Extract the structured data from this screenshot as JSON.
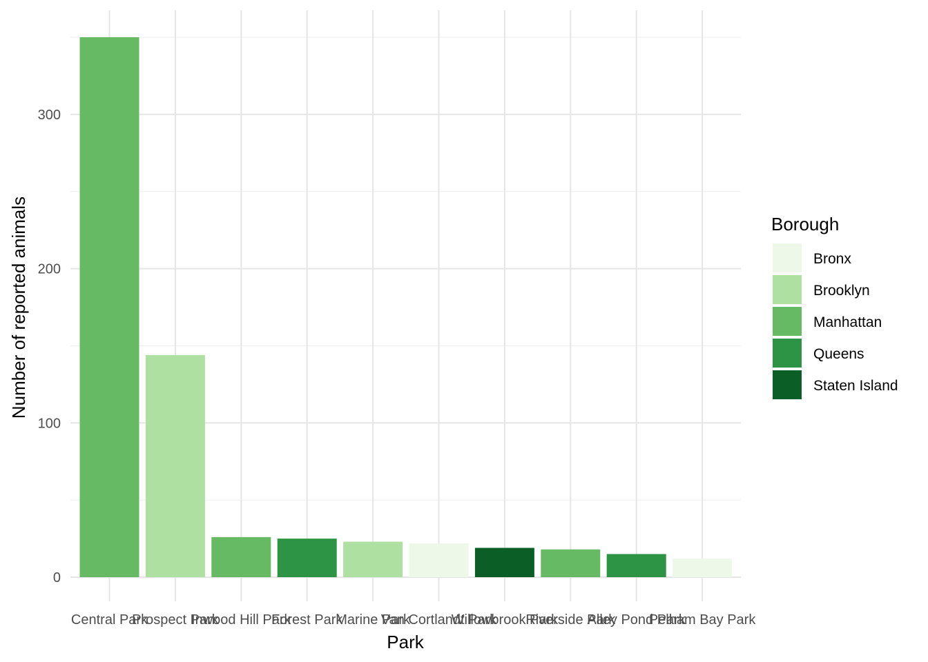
{
  "chart_data": {
    "type": "bar",
    "title": "",
    "xlabel": "Park",
    "ylabel": "Number of reported animals",
    "categories": [
      "Central Park",
      "Prospect Park",
      "Inwood Hill Park",
      "Forest Park",
      "Marine Park",
      "Van Cortlandt Park",
      "Willowbrook Park",
      "Riverside Park",
      "Alley Pond Park",
      "Pelham Bay Park"
    ],
    "values": [
      350,
      144,
      26,
      25,
      23,
      22,
      19,
      18,
      15,
      12
    ],
    "groups": [
      "Manhattan",
      "Brooklyn",
      "Manhattan",
      "Queens",
      "Brooklyn",
      "Bronx",
      "Staten Island",
      "Manhattan",
      "Queens",
      "Bronx"
    ],
    "ylim": [
      0,
      350
    ],
    "yticks": [
      "0",
      "100",
      "200",
      "300"
    ],
    "grid": true,
    "legend": {
      "title": "Borough",
      "placement": "right",
      "entries": [
        {
          "name": "Bronx",
          "color": "#edf8e9"
        },
        {
          "name": "Brooklyn",
          "color": "#aee0a1"
        },
        {
          "name": "Manhattan",
          "color": "#65ba63"
        },
        {
          "name": "Queens",
          "color": "#2c9444"
        },
        {
          "name": "Staten Island",
          "color": "#0b5e25"
        }
      ]
    }
  }
}
